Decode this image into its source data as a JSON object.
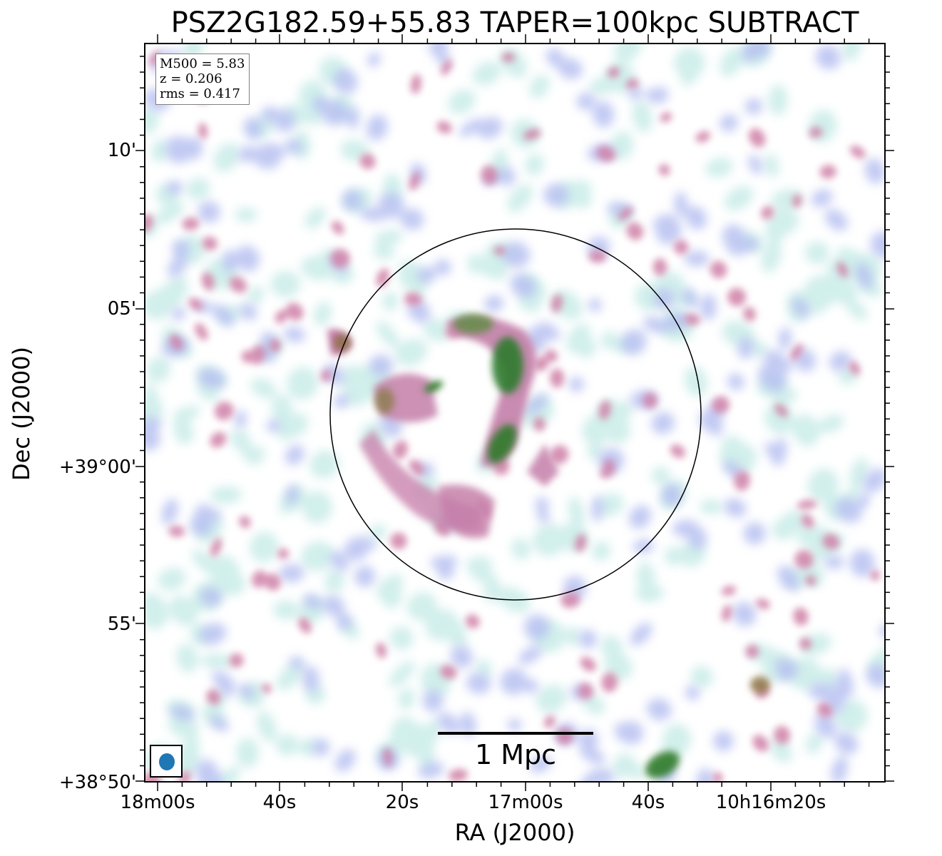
{
  "title": "PSZ2G182.59+55.83 TAPER=100kpc SUBTRACT",
  "info": {
    "mass": "M500 = 5.83",
    "redshift": "z = 0.206",
    "rms": "rms = 0.417"
  },
  "scalebar_label": "1 Mpc",
  "axes": {
    "xlabel": "RA (J2000)",
    "ylabel": "Dec (J2000)",
    "xticks": [
      "18m00s",
      "40s",
      "20s",
      "17m00s",
      "40s",
      "10h16m20s"
    ],
    "yticks": [
      "10'",
      "05'",
      "+39°00'",
      "55'",
      "+38°50'"
    ]
  },
  "colors": {
    "low": "#c9ece8",
    "mid": "#b4bdf0",
    "high": "#cf7fa6",
    "peak": "#2f7a2a",
    "beam": "#1f77b4"
  }
}
